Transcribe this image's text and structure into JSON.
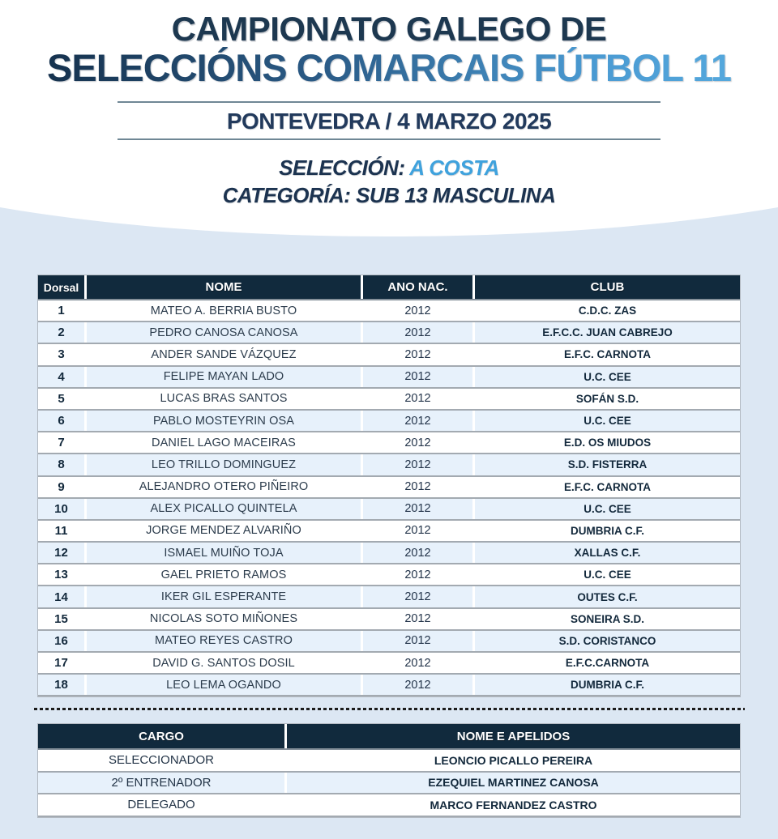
{
  "header": {
    "title_line1": "CAMPIONATO GALEGO DE",
    "title_line2": "SELECCIÓNS COMARCAIS FÚTBOL 11",
    "event_line": "PONTEVEDRA / 4 MARZO 2025",
    "selection_label": "SELECCIÓN: ",
    "selection_value": "A COSTA",
    "category_label": "CATEGORÍA: ",
    "category_value": "SUB 13 MASCULINA"
  },
  "colors": {
    "title_navy": "#1d3850",
    "title_light_blue": "#57abdf",
    "accent_blue": "#3fa2dd",
    "table_header_bg": "#112a3d",
    "page_bottom_bg": "#dce7f3",
    "row_alt_bg": "#e7f1fb"
  },
  "roster_table": {
    "headers": {
      "dorsal": "Dorsal",
      "nome": "NOME",
      "ano": "ANO NAC.",
      "club": "CLUB"
    },
    "rows": [
      {
        "dorsal": "1",
        "nome": "MATEO A. BERRIA BUSTO",
        "ano": "2012",
        "club": "C.D.C. ZAS"
      },
      {
        "dorsal": "2",
        "nome": "PEDRO CANOSA CANOSA",
        "ano": "2012",
        "club": "E.F.C.C. JUAN CABREJO"
      },
      {
        "dorsal": "3",
        "nome": "ANDER SANDE VÁZQUEZ",
        "ano": "2012",
        "club": "E.F.C. CARNOTA"
      },
      {
        "dorsal": "4",
        "nome": "FELIPE MAYAN LADO",
        "ano": "2012",
        "club": "U.C. CEE"
      },
      {
        "dorsal": "5",
        "nome": "LUCAS BRAS SANTOS",
        "ano": "2012",
        "club": "SOFÁN S.D."
      },
      {
        "dorsal": "6",
        "nome": "PABLO MOSTEYRIN OSA",
        "ano": "2012",
        "club": "U.C. CEE"
      },
      {
        "dorsal": "7",
        "nome": "DANIEL LAGO MACEIRAS",
        "ano": "2012",
        "club": "E.D. OS MIUDOS"
      },
      {
        "dorsal": "8",
        "nome": "LEO TRILLO DOMINGUEZ",
        "ano": "2012",
        "club": "S.D. FISTERRA"
      },
      {
        "dorsal": "9",
        "nome": "ALEJANDRO OTERO PIÑEIRO",
        "ano": "2012",
        "club": "E.F.C. CARNOTA"
      },
      {
        "dorsal": "10",
        "nome": "ALEX PICALLO QUINTELA",
        "ano": "2012",
        "club": "U.C. CEE"
      },
      {
        "dorsal": "11",
        "nome": "JORGE MENDEZ ALVARIÑO",
        "ano": "2012",
        "club": "DUMBRIA C.F."
      },
      {
        "dorsal": "12",
        "nome": "ISMAEL MUIÑO TOJA",
        "ano": "2012",
        "club": "XALLAS C.F."
      },
      {
        "dorsal": "13",
        "nome": "GAEL PRIETO RAMOS",
        "ano": "2012",
        "club": "U.C. CEE"
      },
      {
        "dorsal": "14",
        "nome": "IKER GIL ESPERANTE",
        "ano": "2012",
        "club": "OUTES C.F."
      },
      {
        "dorsal": "15",
        "nome": "NICOLAS SOTO MIÑONES",
        "ano": "2012",
        "club": "SONEIRA S.D."
      },
      {
        "dorsal": "16",
        "nome": "MATEO REYES CASTRO",
        "ano": "2012",
        "club": "S.D. CORISTANCO"
      },
      {
        "dorsal": "17",
        "nome": "DAVID G. SANTOS DOSIL",
        "ano": "2012",
        "club": "E.F.C.CARNOTA"
      },
      {
        "dorsal": "18",
        "nome": "LEO LEMA OGANDO",
        "ano": "2012",
        "club": "DUMBRIA C.F."
      }
    ]
  },
  "staff_table": {
    "headers": {
      "cargo": "CARGO",
      "nome": "NOME E APELIDOS"
    },
    "rows": [
      {
        "cargo": "SELECCIONADOR",
        "nome": "LEONCIO PICALLO PEREIRA"
      },
      {
        "cargo": "2º ENTRENADOR",
        "nome": "EZEQUIEL MARTINEZ CANOSA"
      },
      {
        "cargo": "DELEGADO",
        "nome": "MARCO FERNANDEZ CASTRO"
      }
    ]
  }
}
